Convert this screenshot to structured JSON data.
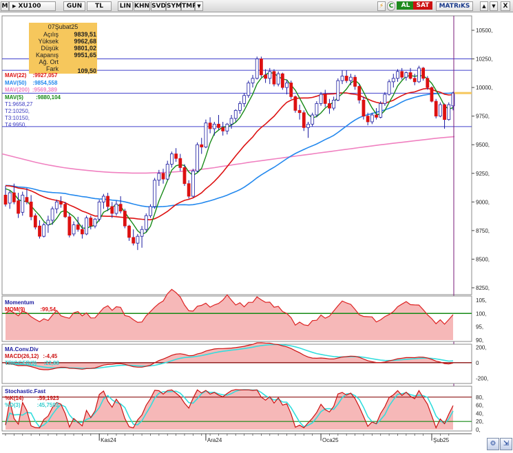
{
  "toolbar": {
    "symbol": "XU100",
    "menu_label": "M",
    "buttons": [
      "GUN",
      "TL",
      "LIN",
      "KHN",
      "SVD",
      "SYM",
      "TMP"
    ],
    "dropdown_glyph": "▼",
    "right_icons": [
      "⚡",
      "C"
    ],
    "buy_label": "AL",
    "sell_label": "SAT",
    "brand_label": "MATRıKS",
    "window_controls": [
      "▲",
      "▼",
      "X"
    ]
  },
  "info_box": {
    "date": "07Şubat25",
    "rows": [
      {
        "label": "Açılış",
        "value": "9839,51"
      },
      {
        "label": "Yüksek",
        "value": "9962,68"
      },
      {
        "label": "Düşük",
        "value": "9801,02"
      },
      {
        "label": "Kapanış",
        "value": "9951,65"
      },
      {
        "label": "Ağ. Ort",
        "value": ""
      },
      {
        "label": "Fark",
        "value": "109,50"
      }
    ]
  },
  "legend": {
    "mav22": "MAV(22)",
    "mav22_val": ":9927,057",
    "mav50": "MAV(50)",
    "mav50_val": ":9854,558",
    "mav200": "MAV(200)",
    "mav200_val": ":9569,389",
    "mav5": "MAV(5)",
    "mav5_val": ":9880,104",
    "t1": "T1:9658,27",
    "t2": "T2:10250,",
    "t3": "T3:10150,",
    "t4": "T4:9950,"
  },
  "panels": {
    "momentum": {
      "title": "Momentum",
      "series": "MOM(9)",
      "value": ":99,54"
    },
    "macd": {
      "title": "MA.Conv.Div",
      "series": "MACD(26,12)",
      "value": ":-4,45",
      "trigger": "TRIGGER(9)",
      "trigger_value": ":22,88"
    },
    "stoch": {
      "title": "Stochastic.Fast",
      "k": "%K(14)",
      "k_value": ":59,1923",
      "d": "%D(3)",
      "d_value": ":45,7593"
    }
  },
  "x_labels": [
    "Kas24",
    "Ara24",
    "Oca25",
    "Şub25"
  ],
  "colors": {
    "up": "#ffffff",
    "down": "#dd1111",
    "candle_edge": "#1a1aa0",
    "mav5": "#178a17",
    "mav22": "#dd1111",
    "mav50": "#2288ee",
    "mav200": "#f080c0",
    "hline": "#4040cc",
    "marker": "#7a1a7a",
    "momentum_line": "#dd2222",
    "momentum_ref": "#148a14",
    "macd": "#cc1111",
    "trigger": "#33dddd",
    "stoch_k": "#cc1111",
    "stoch_d": "#33dddd",
    "last_price": "#f6c75c"
  },
  "chart_data": [
    {
      "type": "candlestick",
      "symbol": "XU100",
      "y_ticks": [
        "10500,",
        "10250,",
        "10000,",
        "9750,",
        "9500,",
        "9250,",
        "9000,",
        "8750,",
        "8500,",
        "8250,"
      ],
      "ylim": [
        8200,
        10600
      ],
      "horizontal_levels": [
        10250,
        10150,
        9950,
        9658.27
      ],
      "last_close": 9951.65,
      "candles": [
        {
          "o": 9060,
          "h": 9140,
          "l": 8960,
          "c": 8980
        },
        {
          "o": 8990,
          "h": 9100,
          "l": 8940,
          "c": 9080
        },
        {
          "o": 9080,
          "h": 9160,
          "l": 8980,
          "c": 9000
        },
        {
          "o": 9010,
          "h": 9080,
          "l": 8860,
          "c": 8900
        },
        {
          "o": 8910,
          "h": 9090,
          "l": 8880,
          "c": 9060
        },
        {
          "o": 9040,
          "h": 9120,
          "l": 8980,
          "c": 9000
        },
        {
          "o": 9000,
          "h": 9060,
          "l": 8840,
          "c": 8870
        },
        {
          "o": 8880,
          "h": 8900,
          "l": 8760,
          "c": 8780
        },
        {
          "o": 8790,
          "h": 8840,
          "l": 8680,
          "c": 8700
        },
        {
          "o": 8700,
          "h": 8820,
          "l": 8690,
          "c": 8800
        },
        {
          "o": 8800,
          "h": 8880,
          "l": 8730,
          "c": 8840
        },
        {
          "o": 8840,
          "h": 8960,
          "l": 8800,
          "c": 8940
        },
        {
          "o": 8940,
          "h": 9020,
          "l": 8900,
          "c": 9000
        },
        {
          "o": 9000,
          "h": 9050,
          "l": 8950,
          "c": 8980
        },
        {
          "o": 8980,
          "h": 9000,
          "l": 8860,
          "c": 8870
        },
        {
          "o": 8870,
          "h": 8900,
          "l": 8690,
          "c": 8710
        },
        {
          "o": 8720,
          "h": 8830,
          "l": 8700,
          "c": 8800
        },
        {
          "o": 8800,
          "h": 8870,
          "l": 8740,
          "c": 8760
        },
        {
          "o": 8760,
          "h": 8800,
          "l": 8680,
          "c": 8720
        },
        {
          "o": 8720,
          "h": 8880,
          "l": 8710,
          "c": 8860
        },
        {
          "o": 8860,
          "h": 8880,
          "l": 8760,
          "c": 8790
        },
        {
          "o": 8790,
          "h": 8860,
          "l": 8770,
          "c": 8850
        },
        {
          "o": 8850,
          "h": 9020,
          "l": 8830,
          "c": 9000
        },
        {
          "o": 9000,
          "h": 9070,
          "l": 8940,
          "c": 9050
        },
        {
          "o": 9050,
          "h": 9080,
          "l": 8920,
          "c": 8960
        },
        {
          "o": 8960,
          "h": 9000,
          "l": 8860,
          "c": 8900
        },
        {
          "o": 8900,
          "h": 9010,
          "l": 8880,
          "c": 8980
        },
        {
          "o": 8980,
          "h": 9050,
          "l": 8900,
          "c": 8920
        },
        {
          "o": 8920,
          "h": 8940,
          "l": 8770,
          "c": 8790
        },
        {
          "o": 8790,
          "h": 8800,
          "l": 8660,
          "c": 8690
        },
        {
          "o": 8690,
          "h": 8760,
          "l": 8620,
          "c": 8640
        },
        {
          "o": 8640,
          "h": 8720,
          "l": 8580,
          "c": 8700
        },
        {
          "o": 8700,
          "h": 8790,
          "l": 8600,
          "c": 8760
        },
        {
          "o": 8760,
          "h": 8900,
          "l": 8740,
          "c": 8880
        },
        {
          "o": 8880,
          "h": 8980,
          "l": 8860,
          "c": 8960
        },
        {
          "o": 8960,
          "h": 9210,
          "l": 8940,
          "c": 9190
        },
        {
          "o": 9190,
          "h": 9280,
          "l": 9140,
          "c": 9250
        },
        {
          "o": 9250,
          "h": 9290,
          "l": 9160,
          "c": 9200
        },
        {
          "o": 9200,
          "h": 9360,
          "l": 9190,
          "c": 9330
        },
        {
          "o": 9330,
          "h": 9440,
          "l": 9300,
          "c": 9420
        },
        {
          "o": 9420,
          "h": 9470,
          "l": 9350,
          "c": 9380
        },
        {
          "o": 9380,
          "h": 9420,
          "l": 9270,
          "c": 9300
        },
        {
          "o": 9300,
          "h": 9330,
          "l": 9140,
          "c": 9160
        },
        {
          "o": 9160,
          "h": 9190,
          "l": 9030,
          "c": 9050
        },
        {
          "o": 9050,
          "h": 9290,
          "l": 9040,
          "c": 9270
        },
        {
          "o": 9270,
          "h": 9520,
          "l": 9260,
          "c": 9500
        },
        {
          "o": 9500,
          "h": 9560,
          "l": 9420,
          "c": 9480
        },
        {
          "o": 9480,
          "h": 9720,
          "l": 9470,
          "c": 9690
        },
        {
          "o": 9690,
          "h": 9740,
          "l": 9600,
          "c": 9640
        },
        {
          "o": 9640,
          "h": 9700,
          "l": 9580,
          "c": 9680
        },
        {
          "o": 9680,
          "h": 9760,
          "l": 9630,
          "c": 9650
        },
        {
          "o": 9650,
          "h": 9700,
          "l": 9580,
          "c": 9620
        },
        {
          "o": 9620,
          "h": 9690,
          "l": 9590,
          "c": 9680
        },
        {
          "o": 9680,
          "h": 9760,
          "l": 9640,
          "c": 9730
        },
        {
          "o": 9730,
          "h": 9810,
          "l": 9700,
          "c": 9800
        },
        {
          "o": 9800,
          "h": 9880,
          "l": 9770,
          "c": 9860
        },
        {
          "o": 9860,
          "h": 9950,
          "l": 9830,
          "c": 9930
        },
        {
          "o": 9930,
          "h": 10060,
          "l": 9910,
          "c": 10040
        },
        {
          "o": 10040,
          "h": 10110,
          "l": 10000,
          "c": 10080
        },
        {
          "o": 10080,
          "h": 10270,
          "l": 10070,
          "c": 10250
        },
        {
          "o": 10250,
          "h": 10270,
          "l": 10090,
          "c": 10110
        },
        {
          "o": 10110,
          "h": 10160,
          "l": 10040,
          "c": 10080
        },
        {
          "o": 10080,
          "h": 10170,
          "l": 10030,
          "c": 10140
        },
        {
          "o": 10140,
          "h": 10160,
          "l": 10010,
          "c": 10030
        },
        {
          "o": 10030,
          "h": 10140,
          "l": 10010,
          "c": 10120
        },
        {
          "o": 10120,
          "h": 10130,
          "l": 9980,
          "c": 10000
        },
        {
          "o": 10000,
          "h": 10070,
          "l": 9940,
          "c": 10040
        },
        {
          "o": 10040,
          "h": 10060,
          "l": 9900,
          "c": 9920
        },
        {
          "o": 9920,
          "h": 9930,
          "l": 9780,
          "c": 9800
        },
        {
          "o": 9800,
          "h": 9850,
          "l": 9720,
          "c": 9780
        },
        {
          "o": 9780,
          "h": 9800,
          "l": 9620,
          "c": 9650
        },
        {
          "o": 9650,
          "h": 9700,
          "l": 9560,
          "c": 9680
        },
        {
          "o": 9680,
          "h": 9780,
          "l": 9660,
          "c": 9760
        },
        {
          "o": 9760,
          "h": 9880,
          "l": 9740,
          "c": 9860
        },
        {
          "o": 9860,
          "h": 9960,
          "l": 9840,
          "c": 9940
        },
        {
          "o": 9940,
          "h": 9980,
          "l": 9830,
          "c": 9860
        },
        {
          "o": 9860,
          "h": 9900,
          "l": 9770,
          "c": 9820
        },
        {
          "o": 9820,
          "h": 9920,
          "l": 9800,
          "c": 9890
        },
        {
          "o": 9890,
          "h": 10080,
          "l": 9880,
          "c": 10060
        },
        {
          "o": 10060,
          "h": 10150,
          "l": 10030,
          "c": 10100
        },
        {
          "o": 10100,
          "h": 10150,
          "l": 10040,
          "c": 10060
        },
        {
          "o": 10060,
          "h": 10120,
          "l": 10020,
          "c": 10090
        },
        {
          "o": 10090,
          "h": 10110,
          "l": 9980,
          "c": 10010
        },
        {
          "o": 10010,
          "h": 10030,
          "l": 9860,
          "c": 9890
        },
        {
          "o": 9890,
          "h": 9920,
          "l": 9720,
          "c": 9750
        },
        {
          "o": 9750,
          "h": 9780,
          "l": 9670,
          "c": 9700
        },
        {
          "o": 9700,
          "h": 9780,
          "l": 9680,
          "c": 9760
        },
        {
          "o": 9760,
          "h": 9820,
          "l": 9720,
          "c": 9740
        },
        {
          "o": 9740,
          "h": 9880,
          "l": 9730,
          "c": 9860
        },
        {
          "o": 9860,
          "h": 9960,
          "l": 9840,
          "c": 9940
        },
        {
          "o": 9940,
          "h": 10070,
          "l": 9930,
          "c": 10050
        },
        {
          "o": 10050,
          "h": 10120,
          "l": 10000,
          "c": 10080
        },
        {
          "o": 10080,
          "h": 10160,
          "l": 10050,
          "c": 10140
        },
        {
          "o": 10140,
          "h": 10170,
          "l": 10070,
          "c": 10090
        },
        {
          "o": 10090,
          "h": 10140,
          "l": 10060,
          "c": 10130
        },
        {
          "o": 10130,
          "h": 10170,
          "l": 10070,
          "c": 10080
        },
        {
          "o": 10080,
          "h": 10120,
          "l": 10020,
          "c": 10050
        },
        {
          "o": 10050,
          "h": 10190,
          "l": 10040,
          "c": 10170
        },
        {
          "o": 10170,
          "h": 10180,
          "l": 10060,
          "c": 10080
        },
        {
          "o": 10080,
          "h": 10100,
          "l": 9980,
          "c": 10000
        },
        {
          "o": 10000,
          "h": 10010,
          "l": 9870,
          "c": 9880
        },
        {
          "o": 9880,
          "h": 9900,
          "l": 9730,
          "c": 9750
        },
        {
          "o": 9750,
          "h": 9870,
          "l": 9740,
          "c": 9850
        },
        {
          "o": 9850,
          "h": 9860,
          "l": 9640,
          "c": 9720
        },
        {
          "o": 9720,
          "h": 9870,
          "l": 9710,
          "c": 9850
        },
        {
          "o": 9839.51,
          "h": 9962.68,
          "l": 9801.02,
          "c": 9951.65
        }
      ],
      "series_names": [
        "MAV(5)",
        "MAV(22)",
        "MAV(50)",
        "MAV(200)"
      ],
      "mav200": [
        9420,
        9405,
        9390,
        9375,
        9360,
        9345,
        9332,
        9320,
        9310,
        9300,
        9292,
        9284,
        9278,
        9272,
        9266,
        9262,
        9258,
        9256,
        9254,
        9252,
        9252,
        9252,
        9254,
        9256,
        9258,
        9262,
        9266,
        9272,
        9278,
        9284,
        9292,
        9300,
        9310,
        9318,
        9328,
        9336,
        9346,
        9354,
        9362,
        9370,
        9378,
        9386,
        9394,
        9402,
        9410,
        9418,
        9426,
        9434,
        9442,
        9450,
        9458,
        9466,
        9474,
        9482,
        9490,
        9498,
        9505,
        9512,
        9519,
        9526,
        9533,
        9540,
        9547,
        9554,
        9560,
        9566,
        9571
      ]
    },
    {
      "type": "line",
      "title": "Momentum",
      "series": [
        {
          "name": "MOM(9)"
        }
      ],
      "y_ticks": [
        "105,",
        "100,",
        "95,",
        "90,"
      ],
      "ylim": [
        90,
        106
      ],
      "reference": 100,
      "last_value": 99.54
    },
    {
      "type": "line",
      "title": "MA.Conv.Div",
      "series": [
        {
          "name": "MACD(26,12)"
        },
        {
          "name": "TRIGGER(9)"
        }
      ],
      "y_ticks": [
        "200,",
        "0",
        "-200,"
      ],
      "ylim": [
        -250,
        220
      ],
      "reference": 0,
      "last_values": {
        "macd": -4.45,
        "trigger": 22.88
      }
    },
    {
      "type": "line",
      "title": "Stochastic.Fast",
      "series": [
        {
          "name": "%K(14)"
        },
        {
          "name": "%D(3)"
        }
      ],
      "y_ticks": [
        "80,",
        "60,",
        "40,",
        "20,",
        "0,"
      ],
      "ylim": [
        0,
        100
      ],
      "reference_levels": [
        80,
        20
      ],
      "last_values": {
        "k": 59.1923,
        "d": 45.7593
      }
    }
  ]
}
